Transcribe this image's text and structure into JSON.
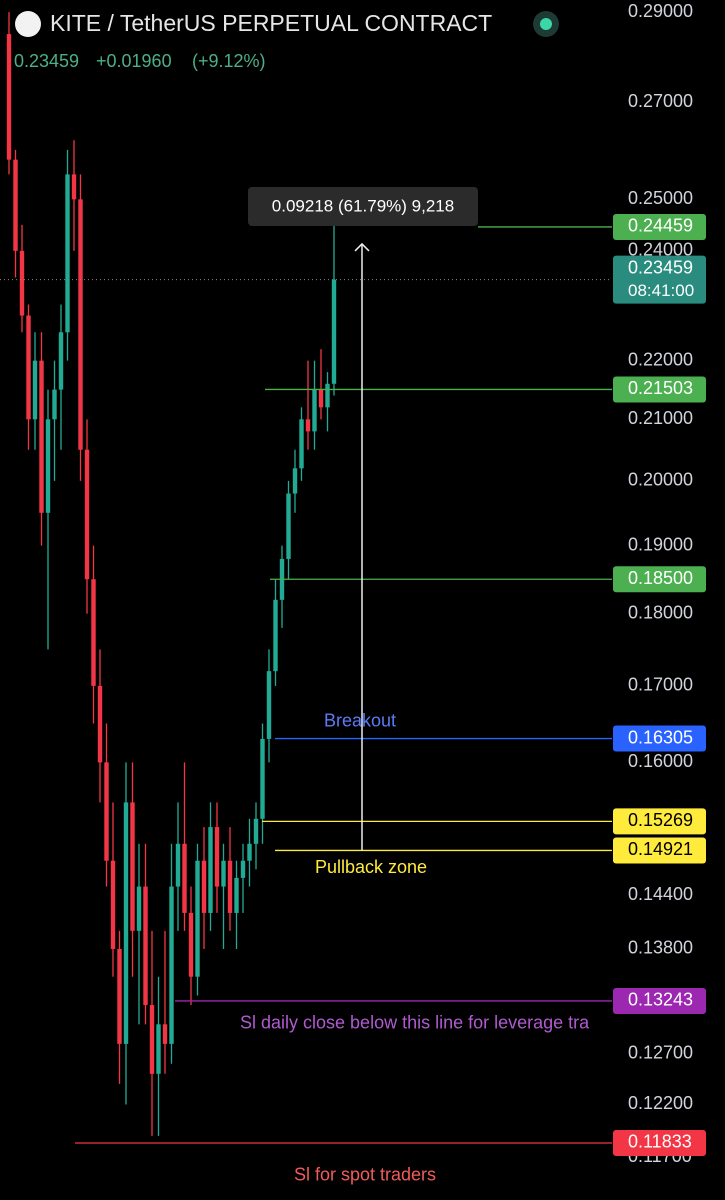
{
  "chart_data": {
    "type": "candlestick",
    "title": "KITE / TetherUS PERPETUAL CONTRACT",
    "price": 0.23459,
    "change": {
      "value": 0.0196,
      "label": "+0.01960"
    },
    "change_pct": {
      "value": 9.12,
      "label": "(+9.12%)"
    },
    "log_scale": true,
    "ylim": [
      0.1131,
      0.2928
    ],
    "yticks": [
      {
        "value": 0.29,
        "label": "0.29000"
      },
      {
        "value": 0.27,
        "label": "0.27000"
      },
      {
        "value": 0.25,
        "label": "0.25000"
      },
      {
        "value": 0.24,
        "label": "0.24000"
      },
      {
        "value": 0.22,
        "label": "0.22000"
      },
      {
        "value": 0.21,
        "label": "0.21000"
      },
      {
        "value": 0.2,
        "label": "0.20000"
      },
      {
        "value": 0.19,
        "label": "0.19000"
      },
      {
        "value": 0.18,
        "label": "0.18000"
      },
      {
        "value": 0.17,
        "label": "0.17000"
      },
      {
        "value": 0.16,
        "label": "0.16000"
      },
      {
        "value": 0.144,
        "label": "0.14400"
      },
      {
        "value": 0.138,
        "label": "0.13800"
      },
      {
        "value": 0.127,
        "label": "0.12700"
      },
      {
        "value": 0.122,
        "label": "0.12200"
      },
      {
        "value": 0.117,
        "label": "0.11700"
      }
    ],
    "up_color": "#22ab94",
    "down_color": "#f23645",
    "candles": {
      "open": [
        0.285,
        0.258,
        0.24,
        0.228,
        0.21,
        0.22,
        0.195,
        0.21,
        0.215,
        0.225,
        0.255,
        0.25,
        0.205,
        0.185,
        0.17,
        0.16,
        0.148,
        0.138,
        0.128,
        0.155,
        0.14,
        0.145,
        0.132,
        0.125,
        0.13,
        0.128,
        0.145,
        0.15,
        0.142,
        0.135,
        0.148,
        0.142,
        0.152,
        0.145,
        0.148,
        0.142,
        0.146,
        0.148,
        0.15,
        0.153,
        0.163,
        0.172,
        0.182,
        0.188,
        0.198,
        0.202,
        0.21,
        0.208,
        0.215,
        0.212,
        0.216
      ],
      "high": [
        0.29,
        0.26,
        0.245,
        0.23,
        0.225,
        0.225,
        0.215,
        0.22,
        0.23,
        0.26,
        0.262,
        0.255,
        0.21,
        0.19,
        0.175,
        0.165,
        0.155,
        0.14,
        0.16,
        0.16,
        0.15,
        0.15,
        0.14,
        0.135,
        0.14,
        0.15,
        0.155,
        0.16,
        0.145,
        0.15,
        0.152,
        0.155,
        0.155,
        0.15,
        0.152,
        0.148,
        0.15,
        0.153,
        0.155,
        0.165,
        0.175,
        0.185,
        0.19,
        0.2,
        0.205,
        0.212,
        0.22,
        0.22,
        0.222,
        0.218,
        0.245
      ],
      "low": [
        0.255,
        0.235,
        0.225,
        0.205,
        0.205,
        0.19,
        0.175,
        0.2,
        0.205,
        0.22,
        0.24,
        0.2,
        0.18,
        0.165,
        0.155,
        0.145,
        0.135,
        0.124,
        0.122,
        0.135,
        0.13,
        0.13,
        0.119,
        0.119,
        0.125,
        0.126,
        0.14,
        0.14,
        0.132,
        0.133,
        0.138,
        0.14,
        0.142,
        0.138,
        0.14,
        0.138,
        0.142,
        0.145,
        0.147,
        0.15,
        0.16,
        0.17,
        0.178,
        0.185,
        0.195,
        0.2,
        0.205,
        0.205,
        0.21,
        0.208,
        0.214
      ],
      "close": [
        0.258,
        0.24,
        0.228,
        0.21,
        0.22,
        0.195,
        0.21,
        0.215,
        0.225,
        0.255,
        0.25,
        0.205,
        0.185,
        0.17,
        0.16,
        0.148,
        0.138,
        0.128,
        0.155,
        0.14,
        0.145,
        0.132,
        0.125,
        0.13,
        0.128,
        0.145,
        0.15,
        0.142,
        0.135,
        0.148,
        0.142,
        0.152,
        0.145,
        0.148,
        0.142,
        0.146,
        0.148,
        0.15,
        0.153,
        0.163,
        0.172,
        0.182,
        0.188,
        0.198,
        0.202,
        0.21,
        0.208,
        0.215,
        0.212,
        0.216,
        0.23459
      ]
    },
    "current": {
      "value": 0.23459,
      "label": "0.23459",
      "countdown": "08:41:00",
      "color": "#2a8c7e"
    },
    "levels": [
      {
        "value": 0.24459,
        "label": "0.24459",
        "color": "#4caf50",
        "text_color": "#ffffff"
      },
      {
        "value": 0.21503,
        "label": "0.21503",
        "color": "#4caf50",
        "text_color": "#ffffff"
      },
      {
        "value": 0.185,
        "label": "0.18500",
        "color": "#4caf50",
        "text_color": "#ffffff"
      },
      {
        "value": 0.16305,
        "label": "0.16305",
        "color": "#2962ff",
        "text_color": "#ffffff",
        "note": "Breakout"
      },
      {
        "value": 0.15269,
        "label": "0.15269",
        "color": "#ffeb3b",
        "text_color": "#000000"
      },
      {
        "value": 0.14921,
        "label": "0.14921",
        "color": "#ffeb3b",
        "text_color": "#000000",
        "note": "Pullback zone"
      },
      {
        "value": 0.13243,
        "label": "0.13243",
        "color": "#9c27b0",
        "text_color": "#ffffff",
        "note": "Sl daily close below this line for leverage tra"
      },
      {
        "value": 0.11833,
        "label": "0.11833",
        "color": "#f23645",
        "text_color": "#ffffff",
        "note": "Sl for spot traders"
      }
    ],
    "measure_label": "0.09218 (61.79%) 9,218"
  }
}
